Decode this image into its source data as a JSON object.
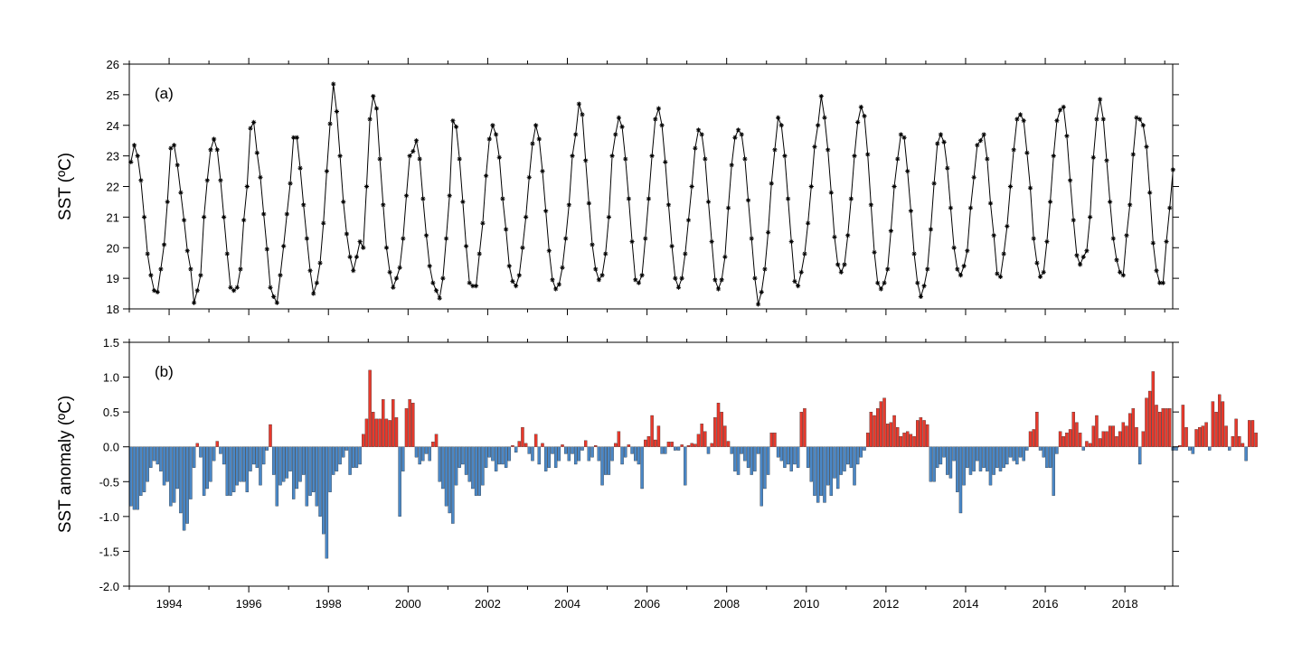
{
  "chart_data": [
    {
      "type": "line",
      "panel_label": "(a)",
      "ylabel": "SST (ºC)",
      "xlim": [
        1993.0,
        2019.2
      ],
      "ylim": [
        18,
        26
      ],
      "yticks": [
        18,
        19,
        20,
        21,
        22,
        23,
        24,
        25,
        26
      ],
      "marker": "asterisk",
      "line_color": "#000000",
      "x_start": 1993.0,
      "x_step_months": 1,
      "values": [
        22.8,
        23.35,
        23.0,
        22.2,
        21.0,
        19.8,
        19.1,
        18.6,
        18.55,
        19.3,
        20.1,
        21.5,
        23.25,
        23.35,
        22.7,
        21.8,
        20.9,
        19.9,
        19.3,
        18.2,
        18.6,
        19.1,
        21.0,
        22.2,
        23.2,
        23.55,
        23.2,
        22.2,
        21.0,
        19.8,
        18.7,
        18.6,
        18.7,
        19.3,
        20.9,
        22.0,
        23.9,
        24.1,
        23.1,
        22.3,
        21.1,
        19.95,
        18.7,
        18.4,
        18.2,
        19.1,
        20.05,
        21.1,
        22.1,
        23.6,
        23.6,
        22.6,
        21.4,
        20.3,
        19.25,
        18.5,
        18.85,
        19.5,
        20.8,
        22.5,
        24.05,
        25.35,
        24.45,
        23.0,
        21.5,
        20.45,
        19.7,
        19.25,
        19.7,
        20.2,
        20.0,
        22.0,
        24.2,
        24.95,
        24.55,
        22.9,
        21.4,
        20.0,
        19.2,
        18.7,
        19.0,
        19.35,
        20.3,
        21.7,
        23.0,
        23.15,
        23.5,
        22.9,
        21.6,
        20.4,
        19.4,
        18.85,
        18.6,
        18.35,
        19.0,
        20.3,
        21.7,
        24.15,
        23.95,
        22.9,
        21.5,
        20.05,
        18.85,
        18.75,
        18.75,
        19.8,
        20.8,
        22.35,
        23.55,
        24.0,
        23.7,
        22.95,
        21.6,
        20.6,
        19.4,
        18.9,
        18.75,
        19.1,
        20.0,
        21.0,
        22.3,
        23.4,
        24.0,
        23.55,
        22.5,
        21.2,
        19.9,
        18.95,
        18.65,
        18.8,
        19.35,
        20.3,
        21.4,
        23.0,
        23.7,
        24.7,
        24.35,
        22.85,
        21.45,
        20.1,
        19.3,
        18.95,
        19.1,
        19.8,
        21.0,
        23.0,
        23.7,
        24.25,
        23.95,
        22.9,
        21.6,
        20.2,
        18.95,
        18.85,
        19.1,
        20.3,
        21.6,
        23.0,
        24.2,
        24.55,
        24.0,
        22.8,
        21.4,
        20.05,
        19.0,
        18.7,
        19.0,
        19.8,
        20.9,
        22.0,
        23.25,
        23.85,
        23.7,
        22.9,
        21.5,
        20.2,
        18.95,
        18.65,
        18.95,
        19.7,
        21.3,
        22.7,
        23.6,
        23.85,
        23.7,
        22.9,
        21.55,
        20.3,
        19.0,
        18.15,
        18.55,
        19.3,
        20.5,
        22.1,
        23.2,
        24.25,
        24.0,
        23.0,
        21.6,
        20.2,
        18.9,
        18.75,
        19.2,
        19.8,
        20.8,
        22.0,
        23.3,
        24.0,
        24.95,
        24.25,
        23.2,
        21.8,
        20.35,
        19.45,
        19.2,
        19.45,
        20.4,
        21.6,
        23.0,
        24.1,
        24.6,
        24.3,
        23.05,
        21.4,
        19.85,
        18.85,
        18.65,
        18.85,
        19.3,
        20.55,
        22.0,
        22.9,
        23.7,
        23.6,
        22.5,
        21.2,
        19.8,
        18.85,
        18.4,
        18.75,
        19.3,
        20.6,
        22.1,
        23.4,
        23.7,
        23.45,
        22.6,
        21.3,
        20.0,
        19.3,
        19.1,
        19.4,
        19.9,
        21.3,
        22.3,
        23.35,
        23.5,
        23.7,
        22.9,
        21.45,
        20.4,
        19.15,
        19.05,
        19.8,
        20.7,
        22.0,
        23.2,
        24.2,
        24.35,
        24.15,
        23.1,
        21.95,
        20.3,
        19.5,
        19.05,
        19.2,
        20.2,
        21.5,
        23.0,
        24.15,
        24.5,
        24.6,
        23.65,
        22.2,
        20.9,
        19.75,
        19.45,
        19.7,
        19.9,
        21.0,
        22.95,
        24.2,
        24.85,
        24.2,
        22.85,
        21.5,
        20.3,
        19.6,
        19.2,
        19.1,
        20.4,
        21.4,
        23.05,
        24.25,
        24.2,
        24.0,
        23.3,
        21.8,
        20.15,
        19.25,
        18.85,
        18.85,
        20.2,
        21.3,
        22.55
      ]
    },
    {
      "type": "bar",
      "panel_label": "(b)",
      "ylabel": "SST anomaly (ºC)",
      "xlim": [
        1993.0,
        2019.2
      ],
      "ylim": [
        -2.0,
        1.5
      ],
      "yticks": [
        -2.0,
        -1.5,
        -1.0,
        -0.5,
        0.0,
        0.5,
        1.0,
        1.5
      ],
      "xticks": [
        "1994",
        "1996",
        "1998",
        "2000",
        "2002",
        "2004",
        "2006",
        "2008",
        "2010",
        "2012",
        "2014",
        "2016",
        "2018"
      ],
      "positive_color": "#e8392c",
      "negative_color": "#4a87c6",
      "x_start": 1993.0,
      "x_step_months": 1,
      "values": [
        -0.85,
        -0.9,
        -0.9,
        -0.7,
        -0.65,
        -0.5,
        -0.3,
        -0.2,
        -0.25,
        -0.35,
        -0.55,
        -0.5,
        -0.85,
        -0.8,
        -0.6,
        -0.95,
        -1.2,
        -1.1,
        -0.75,
        -0.3,
        0.05,
        -0.15,
        -0.7,
        -0.6,
        -0.5,
        -0.2,
        0.08,
        -0.1,
        -0.25,
        -0.7,
        -0.7,
        -0.65,
        -0.55,
        -0.5,
        -0.5,
        -0.65,
        -0.35,
        -0.25,
        -0.3,
        -0.55,
        -0.25,
        -0.05,
        0.32,
        -0.4,
        -0.85,
        -0.55,
        -0.5,
        -0.45,
        -0.35,
        -0.75,
        -0.6,
        -0.5,
        -0.4,
        -0.85,
        -0.7,
        -0.65,
        -0.85,
        -1.0,
        -1.25,
        -1.6,
        -0.65,
        -0.4,
        -0.35,
        -0.25,
        -0.15,
        -0.05,
        -0.4,
        -0.3,
        -0.3,
        -0.25,
        0.18,
        0.4,
        1.1,
        0.5,
        0.4,
        0.4,
        0.68,
        0.4,
        0.38,
        0.68,
        0.42,
        -1.0,
        -0.35,
        0.55,
        0.68,
        0.63,
        -0.15,
        -0.25,
        -0.2,
        -0.1,
        -0.2,
        0.07,
        0.18,
        -0.5,
        -0.6,
        -0.85,
        -0.95,
        -1.1,
        -0.55,
        -0.3,
        -0.25,
        -0.4,
        -0.5,
        -0.6,
        -0.7,
        -0.7,
        -0.55,
        -0.3,
        -0.15,
        -0.2,
        -0.35,
        -0.25,
        -0.25,
        -0.3,
        -0.2,
        0.02,
        -0.08,
        0.08,
        0.28,
        0.05,
        -0.1,
        -0.2,
        0.18,
        -0.25,
        0.05,
        -0.35,
        -0.3,
        -0.1,
        -0.3,
        -0.2,
        0.03,
        -0.1,
        -0.2,
        -0.1,
        -0.25,
        -0.2,
        -0.05,
        0.09,
        -0.2,
        -0.15,
        0.02,
        -0.2,
        -0.55,
        -0.4,
        -0.4,
        -0.2,
        0.05,
        0.22,
        -0.25,
        -0.15,
        0.03,
        -0.1,
        -0.2,
        -0.25,
        -0.6,
        0.1,
        0.15,
        0.45,
        0.1,
        0.3,
        -0.1,
        -0.1,
        0.07,
        0.07,
        -0.05,
        -0.05,
        0.03,
        -0.55,
        0.02,
        0.05,
        0.04,
        0.18,
        0.33,
        0.22,
        -0.1,
        0.05,
        0.42,
        0.63,
        0.5,
        0.3,
        0.08,
        -0.1,
        -0.35,
        -0.4,
        -0.1,
        -0.2,
        -0.3,
        -0.4,
        -0.35,
        -0.1,
        -0.85,
        -0.6,
        -0.4,
        0.2,
        0.2,
        -0.15,
        -0.2,
        -0.3,
        -0.25,
        -0.35,
        -0.25,
        -0.3,
        0.5,
        0.55,
        -0.3,
        -0.5,
        -0.7,
        -0.8,
        -0.7,
        -0.8,
        -0.55,
        -0.7,
        -0.45,
        -0.6,
        -0.4,
        -0.35,
        -0.25,
        -0.3,
        -0.55,
        -0.25,
        -0.15,
        -0.05,
        0.2,
        0.5,
        0.45,
        0.55,
        0.65,
        0.7,
        0.33,
        0.35,
        0.45,
        0.28,
        0.15,
        0.2,
        0.22,
        0.18,
        0.15,
        0.38,
        0.42,
        0.38,
        0.32,
        -0.5,
        -0.5,
        -0.3,
        -0.25,
        -0.15,
        -0.4,
        -0.45,
        -0.2,
        -0.65,
        -0.95,
        -0.55,
        -0.3,
        -0.4,
        -0.35,
        -0.2,
        -0.35,
        -0.3,
        -0.35,
        -0.55,
        -0.4,
        -0.3,
        -0.35,
        -0.3,
        -0.25,
        -0.15,
        -0.2,
        -0.25,
        -0.15,
        -0.2,
        -0.05,
        0.22,
        0.25,
        0.5,
        -0.05,
        -0.15,
        -0.3,
        -0.3,
        -0.7,
        -0.1,
        0.22,
        0.15,
        0.2,
        0.25,
        0.5,
        0.35,
        0.2,
        -0.05,
        0.08,
        0.05,
        0.3,
        0.45,
        0.12,
        0.22,
        0.22,
        0.3,
        0.3,
        0.15,
        0.22,
        0.35,
        0.3,
        0.48,
        0.55,
        0.28,
        -0.25,
        0.22,
        0.7,
        0.8,
        1.08,
        0.6,
        0.5,
        0.55,
        0.55,
        0.55,
        -0.05,
        -0.05,
        0.02,
        0.6,
        0.28,
        -0.05,
        -0.1,
        0.25,
        0.28,
        0.3,
        0.35,
        -0.05,
        0.65,
        0.5,
        0.75,
        0.65,
        0.3,
        -0.05,
        0.15,
        0.4,
        0.15,
        0.05,
        -0.2,
        0.38,
        0.38,
        0.2
      ]
    }
  ]
}
